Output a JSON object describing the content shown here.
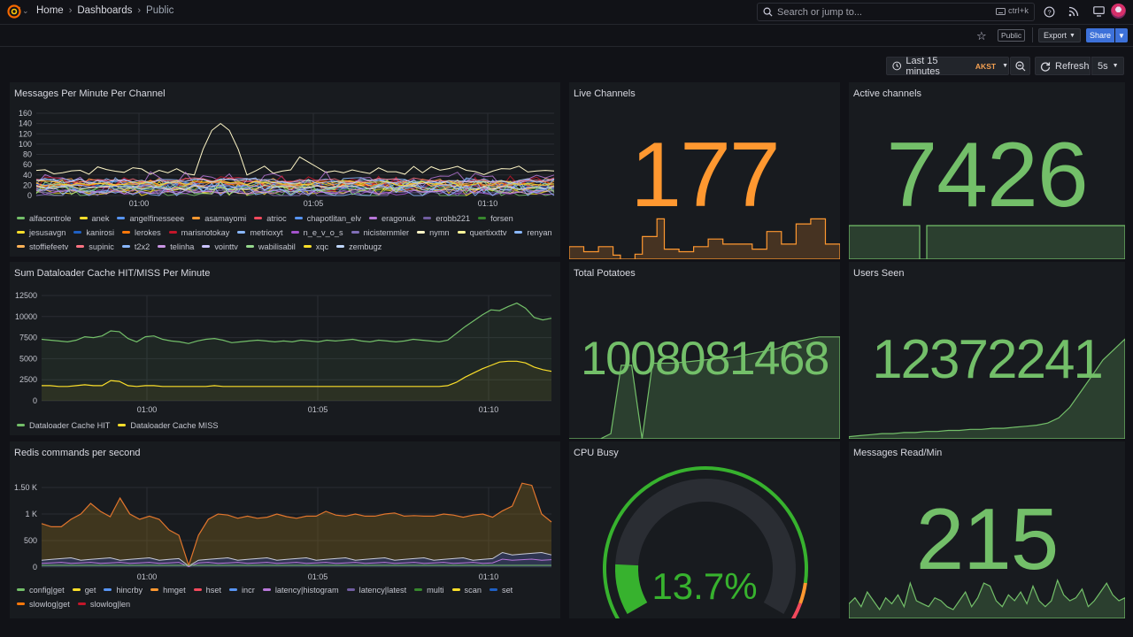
{
  "topbar": {
    "breadcrumbs": [
      "Home",
      "Dashboards",
      "Public"
    ],
    "search_placeholder": "Search or jump to...",
    "search_shortcut": "ctrl+k",
    "public_badge": "Public",
    "export_label": "Export",
    "share_label": "Share"
  },
  "controls": {
    "time_range": "Last 15 minutes",
    "timezone": "AKST",
    "refresh_label": "Refresh",
    "refresh_interval": "5s"
  },
  "colors": {
    "green": "#73bf69",
    "orange": "#ff9830",
    "accent_blue": "#3d71d9"
  },
  "panels": {
    "messages_per_minute": {
      "title": "Messages Per Minute Per Channel",
      "yticks": [
        "160",
        "140",
        "120",
        "100",
        "80",
        "60",
        "40",
        "20",
        "0"
      ],
      "xticks": [
        "01:00",
        "01:05",
        "01:10"
      ],
      "legend": [
        {
          "name": "alfacontrole",
          "color": "#73bf69"
        },
        {
          "name": "anek",
          "color": "#fade2a"
        },
        {
          "name": "angelfinesseee",
          "color": "#5794f2"
        },
        {
          "name": "asamayomi",
          "color": "#ff9830"
        },
        {
          "name": "atrioc",
          "color": "#f2495c"
        },
        {
          "name": "chapotlitan_elv",
          "color": "#5794f2"
        },
        {
          "name": "eragonuk",
          "color": "#b877d9"
        },
        {
          "name": "erobb221",
          "color": "#705da0"
        },
        {
          "name": "forsen",
          "color": "#37872d"
        },
        {
          "name": "jesusavgn",
          "color": "#fade2a"
        },
        {
          "name": "kanirosi",
          "color": "#1f60c4"
        },
        {
          "name": "lerokes",
          "color": "#ff780a"
        },
        {
          "name": "marisnotokay",
          "color": "#c4162a"
        },
        {
          "name": "metrioxyt",
          "color": "#8ab8ff"
        },
        {
          "name": "n_e_v_o_s",
          "color": "#a352cc"
        },
        {
          "name": "nicistemmler",
          "color": "#806eb7"
        },
        {
          "name": "nymn",
          "color": "#fff7c7"
        },
        {
          "name": "quertixxttv",
          "color": "#fff899"
        },
        {
          "name": "renyan",
          "color": "#8ab8ff"
        },
        {
          "name": "stoffiefeetv",
          "color": "#ffb357"
        },
        {
          "name": "supinic",
          "color": "#ff7383"
        },
        {
          "name": "t2x2",
          "color": "#8ab8ff"
        },
        {
          "name": "telinha",
          "color": "#ca95e5"
        },
        {
          "name": "vointtv",
          "color": "#cbc4ff"
        },
        {
          "name": "wabilisabil",
          "color": "#96d98d"
        },
        {
          "name": "xqc",
          "color": "#fade2a"
        },
        {
          "name": "zembugz",
          "color": "#c0d8ff"
        }
      ]
    },
    "live_channels": {
      "title": "Live Channels",
      "value": "177",
      "color": "#ff9830",
      "spark": [
        0.25,
        0.25,
        0.15,
        0.15,
        0.25,
        0.25,
        0.08,
        0.0,
        0.0,
        0.1,
        0.45,
        0.45,
        0.8,
        0.2,
        0.2,
        0.15,
        0.15,
        0.25,
        0.25,
        0.4,
        0.4,
        0.3,
        0.3,
        0.3,
        0.3,
        0.2,
        0.2,
        0.55,
        0.55,
        0.3,
        0.3,
        0.7,
        0.7,
        0.8,
        0.8,
        0.3,
        0.3,
        0.2
      ]
    },
    "active_channels": {
      "title": "Active channels",
      "value": "7426",
      "color": "#73bf69",
      "spark": [
        1,
        1,
        1,
        1,
        1,
        1,
        1,
        1,
        1,
        1,
        0,
        1,
        1,
        1,
        1,
        1,
        1,
        1,
        1,
        1,
        1,
        1,
        1,
        1,
        1,
        1,
        1,
        1,
        1,
        1,
        1,
        1,
        1,
        1,
        1,
        1,
        1,
        1,
        1,
        1
      ]
    },
    "dataloader": {
      "title": "Sum Dataloader Cache HIT/MISS Per Minute",
      "yticks": [
        "12500",
        "10000",
        "7500",
        "5000",
        "2500",
        "0"
      ],
      "xticks": [
        "01:00",
        "01:05",
        "01:10"
      ],
      "legend": [
        {
          "name": "Dataloader Cache HIT",
          "color": "#73bf69"
        },
        {
          "name": "Dataloader Cache MISS",
          "color": "#fade2a"
        }
      ]
    },
    "total_potatoes": {
      "title": "Total Potatoes",
      "value": "1008081468",
      "color": "#73bf69",
      "spark": [
        0.0,
        0.0,
        0.0,
        0.0,
        0.05,
        0.7,
        0.7,
        0.0,
        0.72,
        0.72,
        0.72,
        0.73,
        0.74,
        0.75,
        0.76,
        0.77,
        0.78,
        0.8,
        0.82,
        0.84,
        0.86,
        0.9,
        0.93,
        0.95,
        0.97,
        0.97,
        0.97
      ]
    },
    "users_seen": {
      "title": "Users Seen",
      "value": "12372241",
      "color": "#73bf69",
      "spark": [
        0.02,
        0.03,
        0.04,
        0.05,
        0.05,
        0.06,
        0.06,
        0.07,
        0.07,
        0.08,
        0.08,
        0.09,
        0.09,
        0.1,
        0.1,
        0.11,
        0.12,
        0.13,
        0.15,
        0.2,
        0.3,
        0.45,
        0.6,
        0.75,
        0.85,
        0.95
      ]
    },
    "redis": {
      "title": "Redis commands per second",
      "yticks": [
        "1.50 K",
        "1 K",
        "500",
        "0"
      ],
      "xticks": [
        "01:00",
        "01:05",
        "01:10"
      ],
      "legend": [
        {
          "name": "config|get",
          "color": "#73bf69"
        },
        {
          "name": "get",
          "color": "#fade2a"
        },
        {
          "name": "hincrby",
          "color": "#5794f2"
        },
        {
          "name": "hmget",
          "color": "#ff9830"
        },
        {
          "name": "hset",
          "color": "#f2495c"
        },
        {
          "name": "incr",
          "color": "#5794f2"
        },
        {
          "name": "latency|histogram",
          "color": "#b877d9"
        },
        {
          "name": "latency|latest",
          "color": "#705da0"
        },
        {
          "name": "multi",
          "color": "#37872d"
        },
        {
          "name": "scan",
          "color": "#fade2a"
        },
        {
          "name": "set",
          "color": "#1f60c4"
        },
        {
          "name": "slowlog|get",
          "color": "#ff780a"
        },
        {
          "name": "slowlog|len",
          "color": "#c4162a"
        }
      ]
    },
    "cpu_busy": {
      "title": "CPU Busy",
      "value": "13.7%",
      "percent": 13.7,
      "color": "#37b22e"
    },
    "messages_read": {
      "title": "Messages Read/Min",
      "value": "215",
      "color": "#73bf69",
      "spark": [
        0.25,
        0.35,
        0.2,
        0.45,
        0.3,
        0.15,
        0.35,
        0.25,
        0.4,
        0.2,
        0.6,
        0.3,
        0.25,
        0.2,
        0.35,
        0.3,
        0.2,
        0.15,
        0.3,
        0.45,
        0.2,
        0.35,
        0.6,
        0.55,
        0.3,
        0.2,
        0.4,
        0.3,
        0.45,
        0.25,
        0.55,
        0.3,
        0.2,
        0.3,
        0.65,
        0.4,
        0.3,
        0.35,
        0.5,
        0.2,
        0.3,
        0.45,
        0.6,
        0.4,
        0.3,
        0.35
      ]
    }
  }
}
